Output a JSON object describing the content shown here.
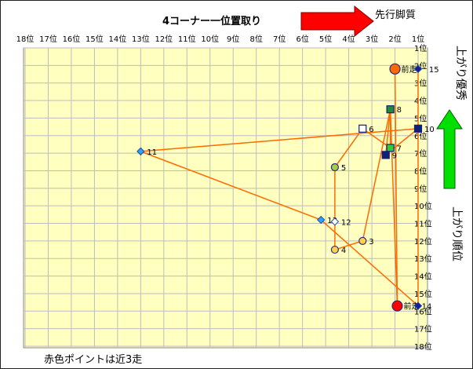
{
  "chart_data": {
    "type": "scatter",
    "title": "4コーナー一位置取り",
    "subtitle_right": "先行脚質",
    "ylabel_top": "上がり優秀",
    "ylabel_right": "上がり順位",
    "footnote": "赤色ポイントは近3走",
    "xlim": [
      18,
      1
    ],
    "ylim": [
      18,
      1
    ],
    "x_ticks": [
      "18位",
      "17位",
      "16位",
      "15位",
      "14位",
      "13位",
      "12位",
      "11位",
      "10位",
      "9位",
      "8位",
      "7位",
      "6位",
      "5位",
      "4位",
      "3位",
      "2位",
      "1位"
    ],
    "y_ticks": [
      "1位",
      "2位",
      "3位",
      "4位",
      "5位",
      "6位",
      "7位",
      "8位",
      "9位",
      "10位",
      "11位",
      "12位",
      "13位",
      "14位",
      "15位",
      "16位",
      "17位",
      "18位"
    ],
    "colors": {
      "plot_bg": "#ffffc0",
      "grid": "#bdbdbd",
      "line": "#ff6a00",
      "arrow_red": "#ff0000",
      "arrow_green": "#00e000"
    },
    "points": [
      {
        "label": "前走",
        "x": 2.0,
        "y": 2.2,
        "marker": "circle",
        "fill": "#ff6a00"
      },
      {
        "label": "",
        "x": 1.0,
        "y": 2.2,
        "marker": "diamond",
        "fill": "#1a1aa0"
      },
      {
        "label": "15",
        "x": 0.8,
        "y": 2.2,
        "marker": "none",
        "fill": ""
      },
      {
        "label": "8",
        "x": 2.2,
        "y": 4.5,
        "marker": "square",
        "fill": "#1e8a3c"
      },
      {
        "label": "10",
        "x": 1.0,
        "y": 5.6,
        "marker": "square",
        "fill": "#10207a"
      },
      {
        "label": "6",
        "x": 3.4,
        "y": 5.6,
        "marker": "square",
        "fill": "#ffffff"
      },
      {
        "label": "7",
        "x": 2.2,
        "y": 6.7,
        "marker": "square",
        "fill": "#33cc33"
      },
      {
        "label": "9",
        "x": 2.4,
        "y": 7.1,
        "marker": "square",
        "fill": "#10207a"
      },
      {
        "label": "11",
        "x": 13.0,
        "y": 6.9,
        "marker": "diamond",
        "fill": "#33a0ff"
      },
      {
        "label": "5",
        "x": 4.6,
        "y": 7.8,
        "marker": "circle",
        "fill": "#a8cf3a"
      },
      {
        "label": "13",
        "x": 5.2,
        "y": 10.8,
        "marker": "diamond",
        "fill": "#33a0ff"
      },
      {
        "label": "12",
        "x": 4.6,
        "y": 10.9,
        "marker": "diamond",
        "fill": "#ffffff"
      },
      {
        "label": "3",
        "x": 3.4,
        "y": 12.0,
        "marker": "circle",
        "fill": "#ffd24a"
      },
      {
        "label": "4",
        "x": 4.6,
        "y": 12.5,
        "marker": "circle",
        "fill": "#ffd24a"
      },
      {
        "label": "前走 14",
        "x": 1.9,
        "y": 15.7,
        "marker": "circle",
        "fill": "#ff0000"
      },
      {
        "label": "",
        "x": 1.0,
        "y": 15.7,
        "marker": "diamond",
        "fill": "#1a1aa0"
      }
    ],
    "segments": [
      [
        2.0,
        2.2,
        1.9,
        15.7
      ],
      [
        1.0,
        2.2,
        1.0,
        15.7
      ],
      [
        2.2,
        4.5,
        1.9,
        15.7
      ],
      [
        2.2,
        4.5,
        3.4,
        12.0
      ],
      [
        2.2,
        4.5,
        2.2,
        6.7
      ],
      [
        1.0,
        5.6,
        13.0,
        6.9
      ],
      [
        1.0,
        5.6,
        2.4,
        7.1
      ],
      [
        3.4,
        5.6,
        2.2,
        6.7
      ],
      [
        3.4,
        5.6,
        4.6,
        7.8
      ],
      [
        2.2,
        6.7,
        2.4,
        7.1
      ],
      [
        13.0,
        6.9,
        5.2,
        10.8
      ],
      [
        4.6,
        7.8,
        4.6,
        12.5
      ],
      [
        5.2,
        10.8,
        1.0,
        15.7
      ],
      [
        4.6,
        12.5,
        3.4,
        12.0
      ],
      [
        2.4,
        7.1,
        2.2,
        4.5
      ]
    ]
  }
}
